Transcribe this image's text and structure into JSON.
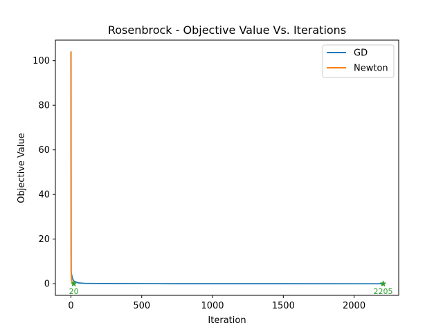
{
  "chart_data": {
    "type": "line",
    "title": "Rosenbrock - Objective Value Vs. Iterations",
    "xlabel": "Iteration",
    "ylabel": "Objective Value",
    "xlim": [
      -110,
      2315
    ],
    "ylim": [
      -5.2,
      109.2
    ],
    "xticks": [
      0,
      500,
      1000,
      1500,
      2000
    ],
    "yticks": [
      0,
      20,
      40,
      60,
      80,
      100
    ],
    "grid": false,
    "legend_position": "top-right",
    "series": [
      {
        "name": "GD",
        "color": "#1f77b4",
        "x": [
          0,
          1,
          2,
          3,
          5,
          10,
          20,
          50,
          100,
          300,
          600,
          1000,
          1500,
          2000,
          2205
        ],
        "y": [
          104,
          5.5,
          5.2,
          4.8,
          4.0,
          2.5,
          1.2,
          0.4,
          0.15,
          0.05,
          0.02,
          0.01,
          0.005,
          0.002,
          0.0
        ]
      },
      {
        "name": "Newton",
        "color": "#ff7f0e",
        "x": [
          0,
          1,
          2,
          3,
          4,
          5,
          7,
          9,
          12,
          15,
          18,
          20
        ],
        "y": [
          104,
          104,
          3.5,
          2.8,
          2.0,
          1.5,
          1.0,
          0.6,
          0.3,
          0.1,
          0.02,
          0.0
        ]
      }
    ],
    "markers": [
      {
        "x": 20,
        "y": 0,
        "label": "20",
        "color": "#2ca02c",
        "symbol": "star"
      },
      {
        "x": 2205,
        "y": 0,
        "label": "2205",
        "color": "#2ca02c",
        "symbol": "star"
      }
    ]
  }
}
